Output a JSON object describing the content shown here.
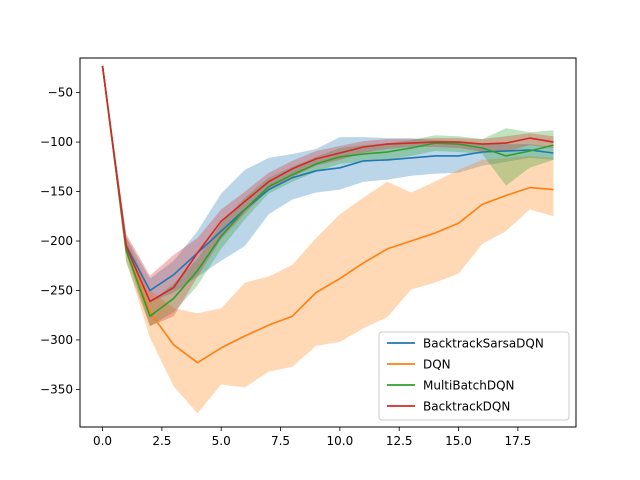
{
  "chart_data": {
    "type": "line",
    "title": "",
    "xlabel": "",
    "ylabel": "",
    "xlim": [
      -0.95,
      19.95
    ],
    "ylim": [
      -388,
      -15
    ],
    "xticks": [
      0.0,
      2.5,
      5.0,
      7.5,
      10.0,
      12.5,
      15.0,
      17.5
    ],
    "xtick_labels": [
      "0.0",
      "2.5",
      "5.0",
      "7.5",
      "10.0",
      "12.5",
      "15.0",
      "17.5"
    ],
    "yticks": [
      -350,
      -300,
      -250,
      -200,
      -150,
      -100,
      -50
    ],
    "ytick_labels": [
      "−350",
      "−300",
      "−250",
      "−200",
      "−150",
      "−100",
      "−50"
    ],
    "grid": false,
    "legend_position": "lower-right",
    "x": [
      0,
      1,
      2,
      3,
      4,
      5,
      6,
      7,
      8,
      9,
      10,
      11,
      12,
      13,
      14,
      15,
      16,
      17,
      18,
      19
    ],
    "series": [
      {
        "name": "BacktrackSarsaDQN",
        "color": "#1f77b4",
        "values": [
          -23,
          -205,
          -250,
          -234,
          -212,
          -190,
          -168,
          -148,
          -136,
          -129,
          -126,
          -119,
          -118,
          -116,
          -114,
          -114,
          -110,
          -109,
          -108,
          -111
        ],
        "lower": [
          -23,
          -210,
          -262,
          -252,
          -236,
          -220,
          -205,
          -173,
          -158,
          -151,
          -148,
          -140,
          -138,
          -134,
          -132,
          -131,
          -124,
          -120,
          -116,
          -118
        ],
        "upper": [
          -23,
          -196,
          -238,
          -220,
          -190,
          -152,
          -128,
          -116,
          -112,
          -107,
          -95,
          -95,
          -96,
          -96,
          -98,
          -99,
          -101,
          -102,
          -102,
          -105
        ]
      },
      {
        "name": "DQN",
        "color": "#ff7f0e",
        "values": [
          -23,
          -210,
          -272,
          -305,
          -323,
          -308,
          -296,
          -285,
          -276,
          -252,
          -238,
          -222,
          -208,
          -200,
          -192,
          -182,
          -163,
          -154,
          -146,
          -148
        ],
        "lower": [
          -23,
          -220,
          -298,
          -347,
          -374,
          -345,
          -348,
          -332,
          -327,
          -306,
          -302,
          -288,
          -277,
          -249,
          -242,
          -233,
          -203,
          -190,
          -168,
          -175
        ],
        "upper": [
          -23,
          -196,
          -250,
          -268,
          -273,
          -268,
          -242,
          -236,
          -224,
          -197,
          -173,
          -156,
          -140,
          -151,
          -140,
          -128,
          -118,
          -116,
          -114,
          -116
        ]
      },
      {
        "name": "MultiBatchDQN",
        "color": "#2ca02c",
        "values": [
          -23,
          -210,
          -276,
          -258,
          -230,
          -195,
          -168,
          -145,
          -133,
          -122,
          -115,
          -112,
          -110,
          -106,
          -101,
          -102,
          -106,
          -114,
          -109,
          -103
        ],
        "lower": [
          -23,
          -222,
          -286,
          -272,
          -245,
          -208,
          -178,
          -152,
          -140,
          -130,
          -122,
          -120,
          -118,
          -114,
          -109,
          -110,
          -112,
          -144,
          -126,
          -118
        ],
        "upper": [
          -23,
          -200,
          -262,
          -243,
          -218,
          -182,
          -156,
          -136,
          -125,
          -115,
          -106,
          -103,
          -101,
          -98,
          -93,
          -94,
          -97,
          -86,
          -90,
          -88
        ]
      },
      {
        "name": "BacktrackDQN",
        "color": "#d62728",
        "values": [
          -23,
          -206,
          -261,
          -247,
          -212,
          -180,
          -160,
          -140,
          -127,
          -117,
          -111,
          -105,
          -102,
          -101,
          -100,
          -100,
          -102,
          -101,
          -96,
          -100
        ],
        "lower": [
          -23,
          -213,
          -286,
          -276,
          -236,
          -198,
          -172,
          -148,
          -135,
          -124,
          -118,
          -111,
          -107,
          -105,
          -105,
          -106,
          -110,
          -110,
          -103,
          -106
        ],
        "upper": [
          -23,
          -193,
          -235,
          -214,
          -197,
          -168,
          -150,
          -131,
          -119,
          -109,
          -104,
          -99,
          -97,
          -97,
          -96,
          -96,
          -97,
          -94,
          -91,
          -94
        ]
      }
    ]
  }
}
